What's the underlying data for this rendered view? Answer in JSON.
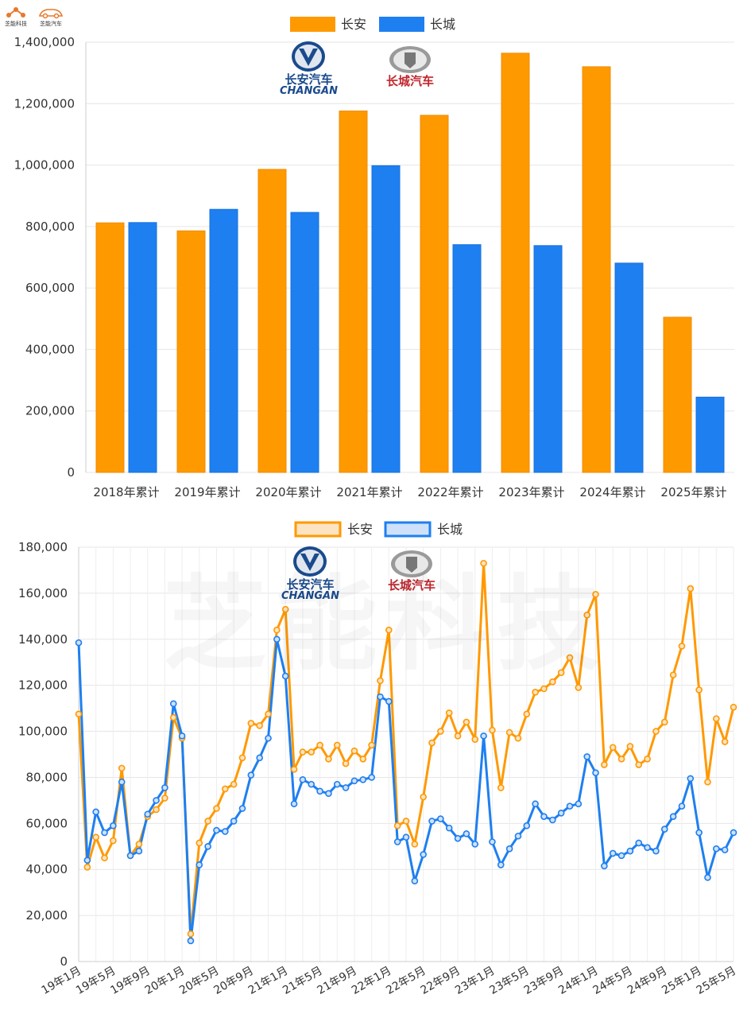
{
  "brand": {
    "left_name": "芝能科技",
    "right_name": "芝能汽车"
  },
  "logos": {
    "changan_cn": "长安汽车",
    "changan_en": "CHANGAN",
    "greatwall_cn": "长城汽车"
  },
  "watermark": "芝能科技",
  "colors": {
    "changan": "#FF9900",
    "greatwall": "#1E7FF0",
    "grid": "#e6e6e6",
    "axis_text": "#333333"
  },
  "chart_data": [
    {
      "type": "bar",
      "categories": [
        "2018年累计",
        "2019年累计",
        "2020年累计",
        "2021年累计",
        "2022年累计",
        "2023年累计",
        "2024年累计",
        "2025年累计"
      ],
      "series": [
        {
          "name": "长安",
          "values": [
            812000,
            786000,
            986000,
            1176000,
            1162000,
            1364000,
            1320000,
            505000
          ]
        },
        {
          "name": "长城",
          "values": [
            813000,
            856000,
            846000,
            998000,
            741000,
            738000,
            681000,
            245000
          ]
        }
      ],
      "yticks": [
        "0",
        "200,000",
        "400,000",
        "600,000",
        "800,000",
        "1,000,000",
        "1,200,000",
        "1,400,000"
      ],
      "ylim": [
        0,
        1400000
      ],
      "grid": true,
      "legend": "top-center"
    },
    {
      "type": "line",
      "x_tick_labels": [
        "19年1月",
        "19年5月",
        "19年9月",
        "20年1月",
        "20年5月",
        "20年9月",
        "21年1月",
        "21年5月",
        "21年9月",
        "22年1月",
        "22年5月",
        "22年9月",
        "23年1月",
        "23年5月",
        "23年9月",
        "24年1月",
        "24年5月",
        "24年9月",
        "25年1月",
        "25年5月"
      ],
      "x_tick_every": 4,
      "series": [
        {
          "name": "长安",
          "values": [
            107500,
            41000,
            54000,
            45000,
            52500,
            84000,
            46000,
            51000,
            63000,
            66000,
            71000,
            106000,
            97000,
            12000,
            51500,
            61000,
            66500,
            75000,
            77000,
            88500,
            103500,
            102500,
            107500,
            144000,
            153000,
            83500,
            91000,
            91000,
            94000,
            88000,
            94000,
            86000,
            91500,
            88000,
            94000,
            122000,
            144000,
            59000,
            61000,
            51000,
            71500,
            95000,
            100000,
            108000,
            98000,
            104000,
            96500,
            173000,
            100500,
            75500,
            99500,
            97000,
            107500,
            117000,
            118500,
            121500,
            125500,
            132000,
            119000,
            150500,
            159500,
            85500,
            93000,
            88000,
            93500,
            85500,
            88000,
            100000,
            104000,
            124500,
            137000,
            162000,
            118000,
            78000,
            105500,
            95500,
            110500
          ]
        },
        {
          "name": "长城",
          "values": [
            138500,
            44000,
            65000,
            56000,
            59000,
            78000,
            46000,
            48000,
            64000,
            70000,
            75500,
            112000,
            98000,
            9000,
            42000,
            50000,
            57000,
            56500,
            61000,
            66500,
            81000,
            88500,
            97000,
            140000,
            124000,
            68500,
            79000,
            77000,
            74000,
            73000,
            77000,
            75500,
            78500,
            79000,
            80000,
            115000,
            113000,
            52000,
            54000,
            35000,
            46500,
            61000,
            62000,
            58000,
            53500,
            55500,
            51000,
            98000,
            52000,
            42000,
            49000,
            54500,
            59000,
            68500,
            63000,
            61500,
            64500,
            67500,
            68500,
            89000,
            82000,
            41500,
            47000,
            46000,
            48000,
            51500,
            49500,
            48000,
            57500,
            63000,
            67500,
            79500,
            56000,
            36500,
            49000,
            48500,
            56000
          ]
        }
      ],
      "yticks": [
        "0",
        "20,000",
        "40,000",
        "60,000",
        "80,000",
        "100,000",
        "120,000",
        "140,000",
        "160,000",
        "180,000"
      ],
      "ylim": [
        0,
        180000
      ],
      "grid": true,
      "legend": "top-center"
    }
  ]
}
